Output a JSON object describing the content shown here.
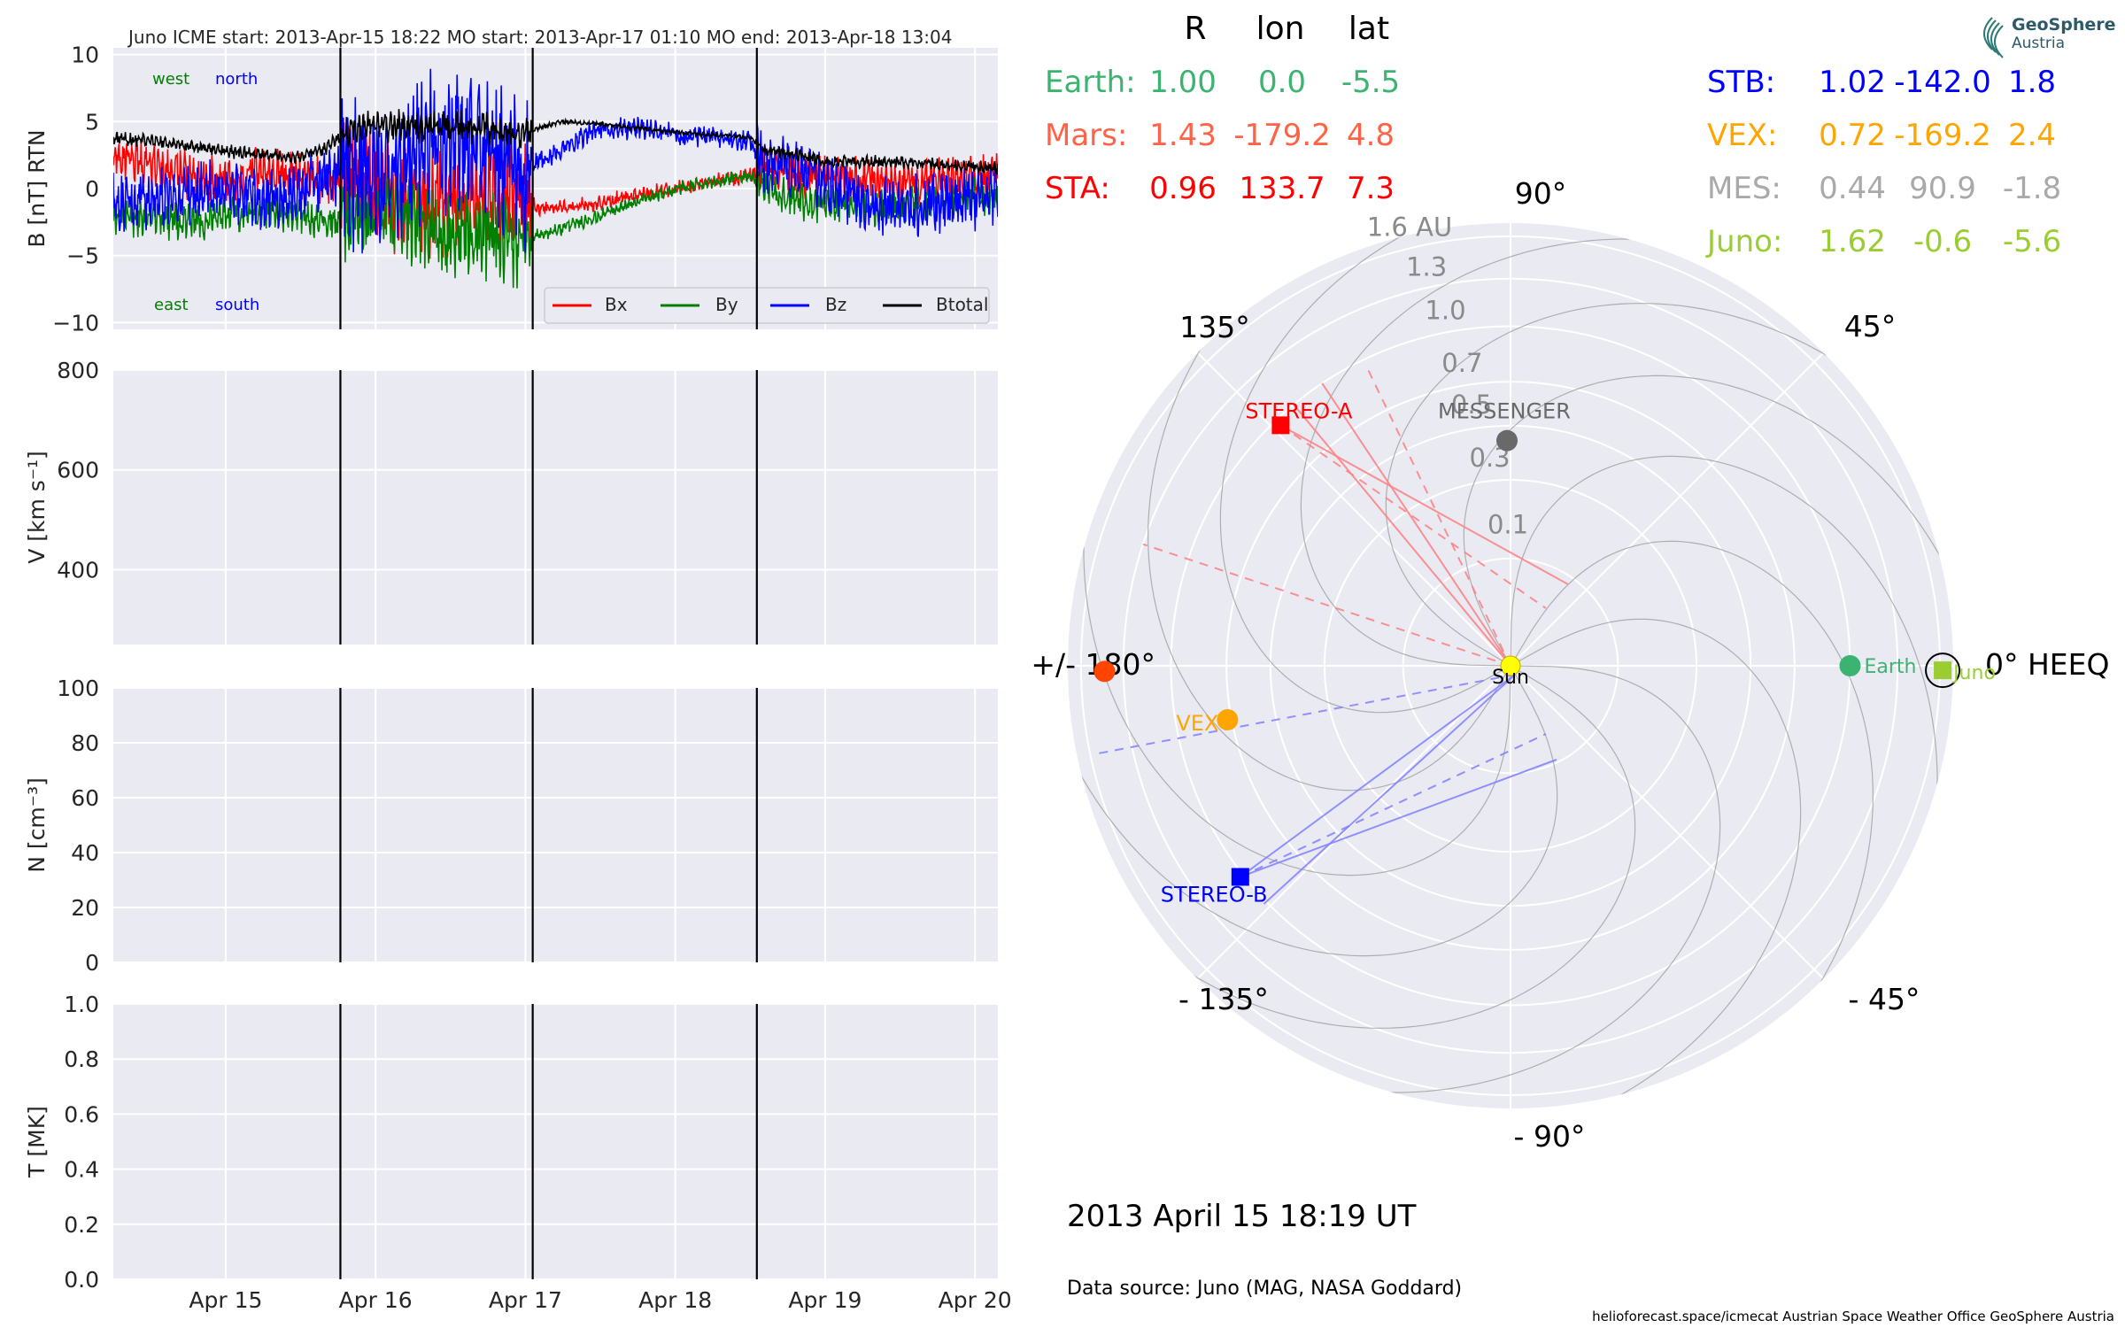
{
  "logo": {
    "line1": "GeoSphere",
    "line2": "Austria"
  },
  "header": {
    "title": "Juno    ICME start: 2013-Apr-15 18:22   MO start: 2013-Apr-17 01:10   MO end: 2013-Apr-18 13:04"
  },
  "table": {
    "col_headers": [
      "R",
      "lon",
      "lat"
    ],
    "rows_left": [
      {
        "name": "Earth:",
        "r": "1.00",
        "lon": "0.0",
        "lat": "-5.5",
        "color": "#3cb371"
      },
      {
        "name": "Mars:",
        "r": "1.43",
        "lon": "-179.2",
        "lat": "4.8",
        "color": "#ff6347"
      },
      {
        "name": "STA:",
        "r": "0.96",
        "lon": "133.7",
        "lat": "7.3",
        "color": "#ff0000"
      }
    ],
    "rows_right": [
      {
        "name": "STB:",
        "r": "1.02",
        "lon": "-142.0",
        "lat": "1.8",
        "color": "#0000ff"
      },
      {
        "name": "VEX:",
        "r": "0.72",
        "lon": "-169.2",
        "lat": "2.4",
        "color": "#ffa500"
      },
      {
        "name": "MES:",
        "r": "0.44",
        "lon": "90.9",
        "lat": "-1.8",
        "color": "#a9a9a9"
      },
      {
        "name": "Juno:",
        "r": "1.62",
        "lon": "-0.6",
        "lat": "-5.6",
        "color": "#9acd32"
      }
    ]
  },
  "date_label": "2013 April 15  18:19 UT",
  "source_label": "Data source: Juno (MAG, NASA Goddard)",
  "footer": "helioforecast.space/icmecat   Austrian Space Weather Office   GeoSphere Austria",
  "chart_data": [
    {
      "type": "line",
      "ylabel": "B [nT] RTN",
      "ylim": [
        -10.5,
        10.5
      ],
      "yticks": [
        10,
        5,
        0,
        -5,
        -10
      ],
      "ytick_labels": [
        "10",
        "5",
        "0",
        "−5",
        "−10"
      ],
      "xlim": [
        "2013-04-14 06:00",
        "2013-04-20 03:40"
      ],
      "event_lines": [
        "2013-04-15 18:22",
        "2013-04-17 01:10",
        "2013-04-18 13:04"
      ],
      "annotations": [
        {
          "text": "west",
          "color": "#008000"
        },
        {
          "text": "north",
          "color": "#0000ff"
        },
        {
          "text": "east",
          "color": "#008000"
        },
        {
          "text": "south",
          "color": "#0000ff"
        }
      ],
      "legend_position": "lower-right",
      "x_days": [
        "2013-04-14",
        "2013-04-14",
        "2013-04-15",
        "2013-04-15",
        "2013-04-15",
        "2013-04-15",
        "2013-04-15",
        "2013-04-16",
        "2013-04-16",
        "2013-04-16",
        "2013-04-16",
        "2013-04-17",
        "2013-04-17",
        "2013-04-17",
        "2013-04-17",
        "2013-04-17",
        "2013-04-18",
        "2013-04-18",
        "2013-04-18",
        "2013-04-18",
        "2013-04-18",
        "2013-04-19",
        "2013-04-19",
        "2013-04-19",
        "2013-04-19",
        "2013-04-20"
      ],
      "x": [
        "06:00",
        "18:00",
        "00:00",
        "06:00",
        "12:00",
        "16:00",
        "20:00",
        "00:00",
        "06:00",
        "12:00",
        "18:00",
        "00:00",
        "02:00",
        "06:00",
        "12:00",
        "18:00",
        "00:00",
        "06:00",
        "12:00",
        "14:00",
        "20:00",
        "00:00",
        "06:00",
        "12:00",
        "18:00",
        "03:40"
      ],
      "series": [
        {
          "name": "Bx",
          "color": "#ff0000",
          "values": [
            2.5,
            1.0,
            0.5,
            1.5,
            0.8,
            0.5,
            0.5,
            0.0,
            -1.0,
            -0.5,
            -1.0,
            -0.5,
            -1.5,
            -1.5,
            -1.0,
            -0.5,
            0.0,
            0.5,
            1.0,
            1.5,
            1.0,
            1.0,
            0.5,
            0.3,
            0.5,
            1.0
          ]
        },
        {
          "name": "By",
          "color": "#008000",
          "values": [
            -2.0,
            -2.5,
            -2.0,
            -1.5,
            -2.0,
            -2.5,
            -3.0,
            -2.0,
            -2.5,
            -3.5,
            -3.5,
            -4.0,
            -3.5,
            -3.0,
            -2.0,
            -1.0,
            0.0,
            0.5,
            1.0,
            0.0,
            -1.0,
            -1.0,
            -1.5,
            -1.5,
            -1.0,
            -0.5
          ]
        },
        {
          "name": "Bz",
          "color": "#0000ff",
          "values": [
            -1.0,
            -0.5,
            0.0,
            -1.0,
            0.0,
            1.0,
            1.5,
            0.5,
            2.0,
            4.0,
            3.0,
            1.0,
            2.0,
            3.0,
            4.5,
            4.5,
            4.0,
            3.8,
            3.5,
            2.0,
            1.5,
            0.5,
            -1.0,
            -1.5,
            -1.0,
            -0.5
          ]
        },
        {
          "name": "Btotal",
          "color": "#000000",
          "values": [
            3.8,
            3.2,
            2.8,
            2.5,
            2.4,
            3.0,
            4.5,
            4.8,
            4.5,
            4.7,
            4.5,
            4.0,
            4.5,
            5.0,
            4.8,
            4.5,
            4.2,
            4.0,
            3.8,
            3.0,
            2.5,
            2.0,
            2.0,
            2.0,
            1.8,
            1.5
          ]
        }
      ]
    },
    {
      "type": "line",
      "ylabel": "V [km s⁻¹]",
      "ylim": [
        250,
        800
      ],
      "yticks": [
        800,
        600,
        400
      ],
      "ytick_labels": [
        "800",
        "600",
        "400"
      ],
      "series": []
    },
    {
      "type": "line",
      "ylabel": "N [cm⁻³]",
      "ylim": [
        0,
        100
      ],
      "yticks": [
        100,
        80,
        60,
        40,
        20,
        0
      ],
      "ytick_labels": [
        "100",
        "80",
        "60",
        "40",
        "20",
        "0"
      ],
      "series": []
    },
    {
      "type": "line",
      "ylabel": "T [MK]",
      "ylim": [
        0,
        1
      ],
      "yticks": [
        1.0,
        0.8,
        0.6,
        0.4,
        0.2,
        0.0
      ],
      "ytick_labels": [
        "1.0",
        "0.8",
        "0.6",
        "0.4",
        "0.2",
        "0.0"
      ],
      "xtick_dates": [
        "2013-04-15",
        "2013-04-16",
        "2013-04-17",
        "2013-04-18",
        "2013-04-19",
        "2013-04-20"
      ],
      "xtick_labels": [
        "Apr 15",
        "Apr 16",
        "Apr 17",
        "Apr 18",
        "Apr 19",
        "Apr 20"
      ],
      "series": []
    },
    {
      "type": "scatter",
      "coordinate_system": "polar",
      "r_max_au": 1.7,
      "r_scale": "sqrt",
      "r_ticks": [
        0.1,
        0.3,
        0.5,
        0.7,
        1.0,
        1.3,
        1.6
      ],
      "r_tick_labels": [
        "0.1",
        "0.3",
        "0.5",
        "0.7",
        "1.0",
        "1.3",
        "1.6 AU"
      ],
      "angle_ticks_deg": [
        0,
        45,
        90,
        135,
        180,
        -135,
        -90,
        -45
      ],
      "angle_tick_labels": [
        "0° HEEQ",
        "45°",
        "90°",
        "135°",
        "+/- 180°",
        "- 135°",
        "- 90°",
        "- 45°"
      ],
      "sun_label": "Sun",
      "bodies": [
        {
          "label": "Earth",
          "r": 1.0,
          "lon": 0.0,
          "color": "#3cb371",
          "marker": "circle"
        },
        {
          "label": "",
          "r": 1.43,
          "lon": -179.2,
          "color": "#ff4500",
          "marker": "circle"
        },
        {
          "label": "STEREO-A",
          "r": 0.96,
          "lon": 133.7,
          "color": "#ff0000",
          "marker": "square"
        },
        {
          "label": "STEREO-B",
          "r": 1.02,
          "lon": -142.0,
          "color": "#0000ff",
          "marker": "square"
        },
        {
          "label": "VEX",
          "r": 0.72,
          "lon": -169.2,
          "color": "#ffa500",
          "marker": "circle"
        },
        {
          "label": "MESSENGER",
          "r": 0.44,
          "lon": 90.9,
          "color": "#696969",
          "marker": "circle"
        },
        {
          "label": "Juno",
          "r": 1.62,
          "lon": -0.6,
          "color": "#9acd32",
          "marker": "square"
        }
      ]
    }
  ]
}
